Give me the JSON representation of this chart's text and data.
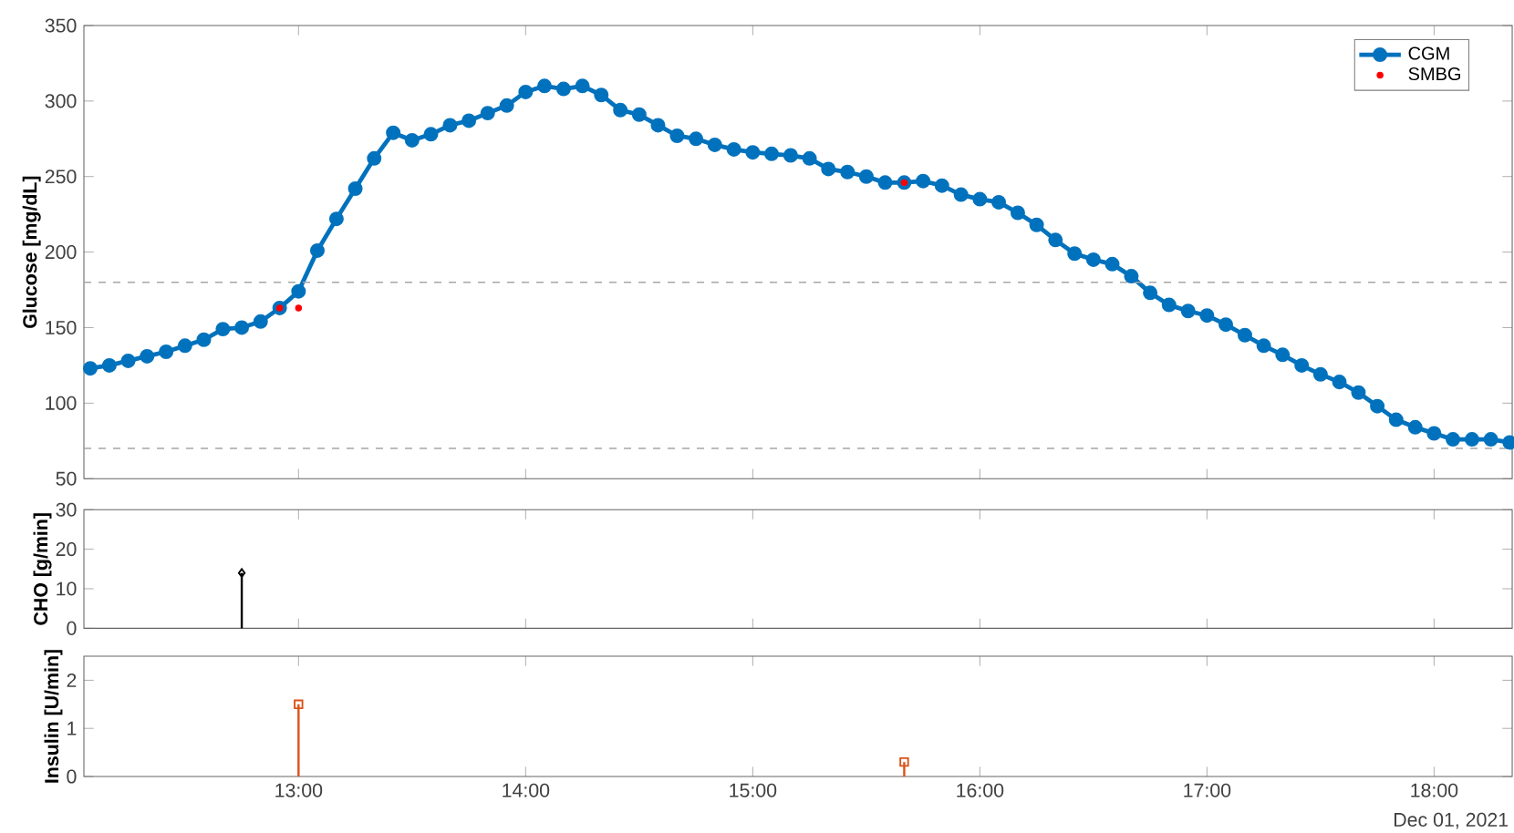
{
  "chart_data": [
    {
      "type": "line",
      "ylabel": "Glucose [mg/dL]",
      "xlim": [
        12.055,
        18.344
      ],
      "ylim": [
        50,
        350
      ],
      "yticks": [
        50,
        100,
        150,
        200,
        250,
        300,
        350
      ],
      "xticks": [
        {
          "value": 13,
          "label": null
        },
        {
          "value": 14,
          "label": null
        },
        {
          "value": 15,
          "label": null
        },
        {
          "value": 16,
          "label": null
        },
        {
          "value": 17,
          "label": null
        },
        {
          "value": 18,
          "label": null
        }
      ],
      "tick_labels": "y",
      "legend": "top right",
      "grid": false,
      "ref_lines": [
        {
          "axis": "y",
          "value": 180,
          "color": "#a6a6a6",
          "line_style": "dashed"
        },
        {
          "axis": "y",
          "value": 70,
          "color": "#a6a6a6",
          "line_style": "dashed"
        }
      ],
      "series": [
        {
          "name": "CGM",
          "type": "line",
          "color": "#0072bd",
          "marker": "circle",
          "x": [
            12.083,
            12.167,
            12.25,
            12.333,
            12.417,
            12.5,
            12.583,
            12.667,
            12.75,
            12.833,
            12.917,
            13,
            13.083,
            13.167,
            13.25,
            13.333,
            13.417,
            13.5,
            13.583,
            13.667,
            13.75,
            13.833,
            13.917,
            14,
            14.083,
            14.167,
            14.25,
            14.333,
            14.417,
            14.5,
            14.583,
            14.667,
            14.75,
            14.833,
            14.917,
            15,
            15.083,
            15.167,
            15.25,
            15.333,
            15.417,
            15.5,
            15.583,
            15.667,
            15.75,
            15.833,
            15.917,
            16,
            16.083,
            16.167,
            16.25,
            16.333,
            16.417,
            16.5,
            16.583,
            16.667,
            16.75,
            16.833,
            16.917,
            17,
            17.083,
            17.167,
            17.25,
            17.333,
            17.417,
            17.5,
            17.583,
            17.667,
            17.75,
            17.833,
            17.917,
            18,
            18.083,
            18.167,
            18.25,
            18.333
          ],
          "values": [
            123,
            125,
            128,
            131,
            134,
            138,
            142,
            149,
            150,
            154,
            163,
            174,
            201,
            222,
            242,
            262,
            279,
            274,
            278,
            284,
            287,
            292,
            297,
            306,
            310,
            308,
            310,
            304,
            294,
            291,
            284,
            277,
            275,
            271,
            268,
            266,
            265,
            264,
            262,
            255,
            253,
            250,
            246,
            246,
            247,
            244,
            238,
            235,
            233,
            226,
            218,
            208,
            199,
            195,
            192,
            184,
            173,
            165,
            161,
            158,
            152,
            145,
            138,
            132,
            125,
            119,
            114,
            107,
            98,
            89,
            84,
            80,
            76,
            76,
            76,
            74
          ]
        },
        {
          "name": "SMBG",
          "type": "scatter",
          "color": "#ff0000",
          "marker": "circle",
          "x": [
            12.917,
            13,
            15.667
          ],
          "values": [
            163,
            163,
            246
          ]
        }
      ]
    },
    {
      "type": "lollipop",
      "ylabel": "CHO [g/min]",
      "xlim": [
        12.055,
        18.344
      ],
      "ylim": [
        0,
        30
      ],
      "yticks": [
        0,
        10,
        20,
        30
      ],
      "xticks": [
        {
          "value": 13,
          "label": null
        },
        {
          "value": 14,
          "label": null
        },
        {
          "value": 15,
          "label": null
        },
        {
          "value": 16,
          "label": null
        },
        {
          "value": 17,
          "label": null
        },
        {
          "value": 18,
          "label": null
        }
      ],
      "tick_labels": "y",
      "series": [
        {
          "color": "#000000",
          "marker": "diamond",
          "x": [
            12.75
          ],
          "values": [
            14
          ]
        }
      ]
    },
    {
      "type": "lollipop",
      "ylabel": "Insulin [U/min]",
      "xlim": [
        12.055,
        18.344
      ],
      "ylim": [
        0,
        2.5
      ],
      "yticks": [
        0,
        1,
        2
      ],
      "xticks": [
        {
          "value": 13,
          "label": "13:00"
        },
        {
          "value": 14,
          "label": "14:00"
        },
        {
          "value": 15,
          "label": "15:00"
        },
        {
          "value": 16,
          "label": "16:00"
        },
        {
          "value": 17,
          "label": "17:00"
        },
        {
          "value": 18,
          "label": "18:00"
        }
      ],
      "annotations": [
        "Dec 01, 2021"
      ],
      "series": [
        {
          "color": "#d95319",
          "marker": "square",
          "x": [
            13,
            15.667
          ],
          "values": [
            1.5,
            0.3
          ]
        }
      ]
    }
  ]
}
